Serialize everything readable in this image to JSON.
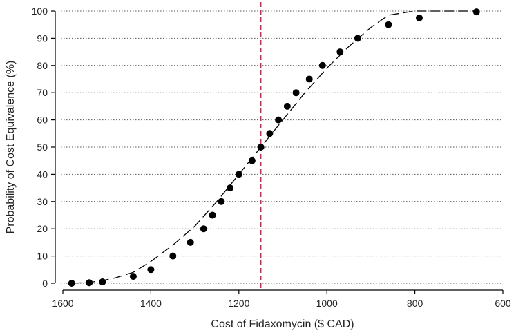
{
  "chart_data": {
    "type": "scatter",
    "title": "",
    "xlabel": "Cost of Fidaxomycin ($ CAD)",
    "ylabel": "Probability of Cost Equivalence (%)",
    "xlim": [
      1600,
      600
    ],
    "ylim": [
      0,
      100
    ],
    "x_reversed": true,
    "x_ticks": [
      1600,
      1400,
      1200,
      1000,
      800,
      600
    ],
    "y_ticks": [
      0,
      10,
      20,
      30,
      40,
      50,
      60,
      70,
      80,
      90,
      100
    ],
    "grid": "horizontal dotted",
    "reference_line_x": 1150,
    "colors": {
      "points": "#000000",
      "fit": "#000000",
      "reference": "#d0284a"
    },
    "series": [
      {
        "style": "points",
        "x": [
          1580,
          1540,
          1510,
          1440,
          1400,
          1350,
          1310,
          1280,
          1260,
          1240,
          1220,
          1200,
          1170,
          1150,
          1130,
          1110,
          1090,
          1070,
          1040,
          1010,
          970,
          930,
          860,
          790,
          660
        ],
        "y": [
          0,
          0.2,
          0.5,
          2.5,
          5,
          10,
          15,
          20,
          25,
          30,
          35,
          40,
          45,
          50,
          55,
          60,
          65,
          70,
          75,
          80,
          85,
          90,
          95,
          97.5,
          99.7
        ]
      },
      {
        "style": "dashed-line",
        "x": [
          1580,
          1540,
          1510,
          1480,
          1440,
          1400,
          1350,
          1300,
          1250,
          1200,
          1150,
          1100,
          1050,
          1000,
          950,
          900,
          860,
          800,
          750,
          700,
          660
        ],
        "y": [
          0,
          0.3,
          1,
          2,
          4,
          8,
          14,
          21,
          30,
          40,
          50,
          60,
          70,
          79,
          87,
          94,
          98.5,
          100,
          100,
          100,
          100
        ]
      }
    ]
  }
}
